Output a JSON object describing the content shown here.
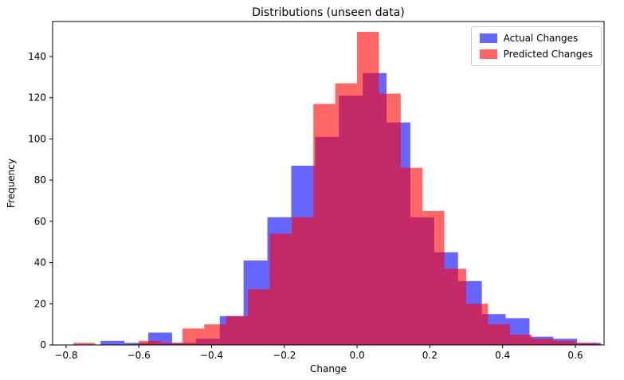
{
  "chart_data": {
    "type": "histogram",
    "title": "Distributions (unseen data)",
    "xlabel": "Change",
    "ylabel": "Frequency",
    "xlim": [
      -0.837,
      0.679
    ],
    "ylim": [
      0,
      157
    ],
    "xticks": [
      -0.8,
      -0.6,
      -0.4,
      -0.2,
      0.0,
      0.2,
      0.4,
      0.6
    ],
    "yticks": [
      0,
      20,
      40,
      60,
      80,
      100,
      120,
      140
    ],
    "grid": false,
    "legend_position": "upper right",
    "series": [
      {
        "name": "Actual Changes",
        "color": "#0000ff",
        "alpha": 0.6,
        "bin_start": -0.705,
        "bin_width": 0.0655,
        "counts": [
          2,
          1,
          6,
          1,
          3,
          14,
          41,
          62,
          87,
          101,
          121,
          132,
          108,
          62,
          45,
          31,
          15,
          13,
          4,
          3,
          1
        ]
      },
      {
        "name": "Predicted Changes",
        "color": "#ff0000",
        "alpha": 0.6,
        "bin_start": -0.78,
        "bin_width": 0.06,
        "counts": [
          1,
          0,
          0,
          2,
          1,
          8,
          10,
          14,
          27,
          54,
          62,
          117,
          127,
          152,
          122,
          86,
          65,
          37,
          20,
          10,
          5,
          3,
          2,
          1
        ]
      }
    ]
  }
}
